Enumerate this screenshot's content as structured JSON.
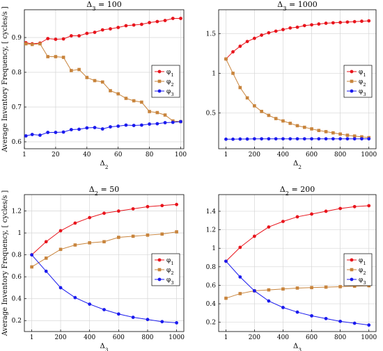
{
  "chart_data": [
    {
      "type": "line",
      "title": "Δ3 = 100",
      "xlabel": "Δ2",
      "ylabel": "Average Inventory Frequency, [ cycles/s ]",
      "xlim": [
        0,
        102
      ],
      "ylim": [
        0.58,
        0.98
      ],
      "xticks": [
        0,
        20,
        40,
        60,
        80,
        100
      ],
      "xtick_labels": [
        "1",
        "20",
        "40",
        "60",
        "80",
        "100"
      ],
      "yticks": [
        0.6,
        0.7,
        0.8,
        0.9
      ],
      "ytick_labels": [
        "0.6",
        "0.7",
        "0.8",
        "0.9"
      ],
      "grid": true,
      "legend": "right",
      "x": [
        1,
        5,
        10,
        15,
        20,
        25,
        30,
        35,
        40,
        45,
        50,
        55,
        60,
        65,
        70,
        75,
        80,
        85,
        90,
        95,
        100
      ],
      "series": [
        {
          "name": "φ1",
          "color": "#e8141c",
          "marker": "circle",
          "values": [
            0.885,
            0.882,
            0.884,
            0.897,
            0.895,
            0.896,
            0.905,
            0.905,
            0.912,
            0.915,
            0.922,
            0.925,
            0.929,
            0.934,
            0.936,
            0.938,
            0.943,
            0.946,
            0.949,
            0.955,
            0.955
          ]
        },
        {
          "name": "φ2",
          "color": "#c8843c",
          "marker": "square",
          "values": [
            0.882,
            0.88,
            0.882,
            0.845,
            0.845,
            0.843,
            0.805,
            0.808,
            0.785,
            0.776,
            0.772,
            0.747,
            0.738,
            0.725,
            0.718,
            0.714,
            0.687,
            0.684,
            0.677,
            0.66,
            0.658
          ]
        },
        {
          "name": "φ3",
          "color": "#1a1aee",
          "marker": "circle",
          "values": [
            0.617,
            0.621,
            0.619,
            0.627,
            0.627,
            0.628,
            0.635,
            0.636,
            0.64,
            0.641,
            0.637,
            0.643,
            0.645,
            0.648,
            0.647,
            0.648,
            0.651,
            0.652,
            0.655,
            0.656,
            0.658
          ]
        }
      ]
    },
    {
      "type": "line",
      "title": "Δ3 = 1000",
      "xlabel": "Δ2",
      "ylabel": "",
      "xlim": [
        -50,
        1050
      ],
      "ylim": [
        0.05,
        1.8
      ],
      "xticks": [
        1,
        200,
        400,
        600,
        800,
        1000
      ],
      "xtick_labels": [
        "1",
        "200",
        "400",
        "600",
        "800",
        "1000"
      ],
      "yticks": [
        0.5,
        1.0,
        1.5
      ],
      "ytick_labels": [
        "0.5",
        "1",
        "1.5"
      ],
      "grid": true,
      "legend": "right",
      "x": [
        1,
        50,
        100,
        150,
        200,
        250,
        300,
        350,
        400,
        450,
        500,
        550,
        600,
        650,
        700,
        750,
        800,
        850,
        900,
        950,
        1000
      ],
      "series": [
        {
          "name": "φ1",
          "color": "#e8141c",
          "marker": "circle",
          "values": [
            1.18,
            1.27,
            1.34,
            1.4,
            1.44,
            1.48,
            1.51,
            1.53,
            1.55,
            1.57,
            1.58,
            1.6,
            1.61,
            1.62,
            1.63,
            1.635,
            1.64,
            1.645,
            1.65,
            1.655,
            1.66
          ]
        },
        {
          "name": "φ2",
          "color": "#c8843c",
          "marker": "square",
          "values": [
            1.18,
            1.0,
            0.82,
            0.69,
            0.59,
            0.52,
            0.47,
            0.43,
            0.4,
            0.37,
            0.34,
            0.32,
            0.3,
            0.28,
            0.265,
            0.25,
            0.235,
            0.22,
            0.21,
            0.2,
            0.19
          ]
        },
        {
          "name": "φ3",
          "color": "#1a1aee",
          "marker": "circle",
          "values": [
            0.17,
            0.17,
            0.172,
            0.172,
            0.175,
            0.175,
            0.175,
            0.175,
            0.175,
            0.175,
            0.175,
            0.175,
            0.175,
            0.175,
            0.175,
            0.175,
            0.175,
            0.175,
            0.175,
            0.175,
            0.175
          ]
        }
      ]
    },
    {
      "type": "line",
      "title": "Δ2 = 50",
      "xlabel": "Δ3",
      "ylabel": "Average Inventory Frequency, [ cycles/s ]",
      "xlim": [
        -50,
        1050
      ],
      "ylim": [
        0.1,
        1.35
      ],
      "xticks": [
        1,
        200,
        400,
        600,
        800,
        1000
      ],
      "xtick_labels": [
        "1",
        "200",
        "400",
        "600",
        "800",
        "1000"
      ],
      "yticks": [
        0.2,
        0.4,
        0.6,
        0.8,
        1.0,
        1.2
      ],
      "ytick_labels": [
        "0.2",
        "0.4",
        "0.6",
        "0.8",
        "1",
        "1.2"
      ],
      "grid": true,
      "legend": "right",
      "x": [
        1,
        100,
        200,
        300,
        400,
        500,
        600,
        700,
        800,
        900,
        1000
      ],
      "series": [
        {
          "name": "φ1",
          "color": "#e8141c",
          "marker": "circle",
          "values": [
            0.8,
            0.92,
            1.02,
            1.09,
            1.14,
            1.18,
            1.2,
            1.22,
            1.24,
            1.25,
            1.26
          ]
        },
        {
          "name": "φ2",
          "color": "#c8843c",
          "marker": "square",
          "values": [
            0.69,
            0.77,
            0.85,
            0.89,
            0.91,
            0.92,
            0.96,
            0.97,
            0.98,
            0.99,
            1.01
          ]
        },
        {
          "name": "φ3",
          "color": "#1a1aee",
          "marker": "circle",
          "values": [
            0.8,
            0.65,
            0.5,
            0.41,
            0.35,
            0.3,
            0.26,
            0.23,
            0.21,
            0.19,
            0.18
          ]
        }
      ]
    },
    {
      "type": "line",
      "title": "Δ2 = 200",
      "xlabel": "Δ3",
      "ylabel": "",
      "xlim": [
        -50,
        1050
      ],
      "ylim": [
        0.1,
        1.58
      ],
      "xticks": [
        1,
        200,
        400,
        600,
        800,
        1000
      ],
      "xtick_labels": [
        "1",
        "200",
        "400",
        "600",
        "800",
        "1000"
      ],
      "yticks": [
        0.2,
        0.4,
        0.6,
        0.8,
        1.0,
        1.2,
        1.4
      ],
      "ytick_labels": [
        "0.2",
        "0.4",
        "0.6",
        "0.8",
        "1",
        "1.2",
        "1.4"
      ],
      "grid": true,
      "legend": "right",
      "x": [
        1,
        100,
        200,
        300,
        400,
        500,
        600,
        700,
        800,
        900,
        1000
      ],
      "series": [
        {
          "name": "φ1",
          "color": "#e8141c",
          "marker": "circle",
          "values": [
            0.86,
            1.01,
            1.13,
            1.23,
            1.29,
            1.34,
            1.37,
            1.4,
            1.43,
            1.45,
            1.46
          ]
        },
        {
          "name": "φ2",
          "color": "#c8843c",
          "marker": "square",
          "values": [
            0.46,
            0.51,
            0.54,
            0.55,
            0.56,
            0.57,
            0.575,
            0.58,
            0.585,
            0.59,
            0.595
          ]
        },
        {
          "name": "φ3",
          "color": "#1a1aee",
          "marker": "circle",
          "values": [
            0.86,
            0.69,
            0.54,
            0.43,
            0.36,
            0.31,
            0.27,
            0.24,
            0.21,
            0.19,
            0.17
          ]
        }
      ]
    }
  ]
}
